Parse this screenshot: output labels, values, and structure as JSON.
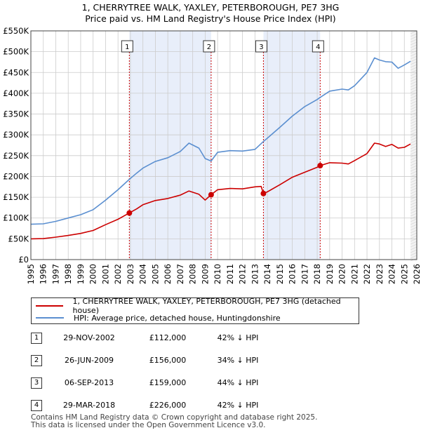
{
  "title_line1": "1, CHERRYTREE WALK, YAXLEY, PETERBOROUGH, PE7 3HG",
  "title_line2": "Price paid vs. HM Land Registry's House Price Index (HPI)",
  "colors": {
    "red": "#cc0000",
    "blue": "#5b8fd0",
    "shade": "#e8eefa",
    "grid": "#cccccc"
  },
  "chart_data": {
    "type": "line",
    "ylim": [
      0,
      550000
    ],
    "xlim": [
      1995,
      2026
    ],
    "y_ticks": [
      0,
      50000,
      100000,
      150000,
      200000,
      250000,
      300000,
      350000,
      400000,
      450000,
      500000,
      550000
    ],
    "y_tick_labels": [
      "£0",
      "£50K",
      "£100K",
      "£150K",
      "£200K",
      "£250K",
      "£300K",
      "£350K",
      "£400K",
      "£450K",
      "£500K",
      "£550K"
    ],
    "x_ticks": [
      1995,
      1996,
      1997,
      1998,
      1999,
      2000,
      2001,
      2002,
      2003,
      2004,
      2005,
      2006,
      2007,
      2008,
      2009,
      2010,
      2011,
      2012,
      2013,
      2014,
      2015,
      2016,
      2017,
      2018,
      2019,
      2020,
      2021,
      2022,
      2023,
      2024,
      2025,
      2026
    ],
    "series": [
      {
        "name": "1, CHERRYTREE WALK, YAXLEY, PETERBOROUGH, PE7 3HG (detached house)",
        "color": "#cc0000",
        "x": [
          1995,
          1996,
          1997,
          1998,
          1999,
          2000,
          2001,
          2002,
          2002.91,
          2003.5,
          2004,
          2005,
          2006,
          2007,
          2007.7,
          2008.5,
          2009,
          2009.48,
          2010,
          2011,
          2012,
          2013,
          2013.5,
          2013.68,
          2014,
          2015,
          2016,
          2017,
          2018,
          2018.24,
          2019,
          2020,
          2020.5,
          2021,
          2022,
          2022.6,
          2023,
          2023.5,
          2024,
          2024.5,
          2025,
          2025.5
        ],
        "y": [
          50000,
          50500,
          54000,
          58000,
          63000,
          70000,
          84000,
          97000,
          112000,
          122000,
          132000,
          142000,
          147000,
          155000,
          165000,
          157000,
          143000,
          156000,
          168000,
          171000,
          170000,
          175000,
          176000,
          159000,
          163000,
          180000,
          198000,
          210000,
          222000,
          226000,
          233000,
          232000,
          230000,
          238000,
          255000,
          280000,
          278000,
          272000,
          277000,
          268000,
          270000,
          278000
        ]
      },
      {
        "name": "HPI: Average price, detached house, Huntingdonshire",
        "color": "#5b8fd0",
        "x": [
          1995,
          1996,
          1997,
          1998,
          1999,
          2000,
          2001,
          2002,
          2002.91,
          2003.5,
          2004,
          2005,
          2006,
          2007,
          2007.7,
          2008.5,
          2009,
          2009.48,
          2010,
          2011,
          2012,
          2013,
          2013.68,
          2014,
          2015,
          2016,
          2017,
          2018,
          2018.24,
          2019,
          2020,
          2020.5,
          2021,
          2022,
          2022.6,
          2023,
          2023.5,
          2024,
          2024.5,
          2025,
          2025.5
        ],
        "y": [
          85000,
          86000,
          92000,
          100000,
          108000,
          120000,
          143000,
          168000,
          193000,
          208000,
          220000,
          236000,
          245000,
          260000,
          280000,
          268000,
          243000,
          237000,
          258000,
          262000,
          261000,
          265000,
          284000,
          292000,
          318000,
          345000,
          368000,
          385000,
          390000,
          405000,
          410000,
          408000,
          418000,
          450000,
          485000,
          480000,
          476000,
          475000,
          460000,
          468000,
          477000
        ]
      }
    ],
    "transactions": [
      {
        "id": "1",
        "x": 2002.91,
        "y": 112000
      },
      {
        "id": "2",
        "x": 2009.48,
        "y": 156000
      },
      {
        "id": "3",
        "x": 2013.68,
        "y": 159000
      },
      {
        "id": "4",
        "x": 2018.24,
        "y": 226000
      }
    ],
    "shaded_ranges": [
      [
        2002.91,
        2009.48
      ],
      [
        2013.68,
        2018.24
      ]
    ],
    "forecast_start": 2025.5
  },
  "legend": {
    "red_label": "1, CHERRYTREE WALK, YAXLEY, PETERBOROUGH, PE7 3HG (detached house)",
    "blue_label": "HPI: Average price, detached house, Huntingdonshire"
  },
  "sales": [
    {
      "num": "1",
      "date": "29-NOV-2002",
      "price": "£112,000",
      "pct": "42% ↓ HPI"
    },
    {
      "num": "2",
      "date": "26-JUN-2009",
      "price": "£156,000",
      "pct": "34% ↓ HPI"
    },
    {
      "num": "3",
      "date": "06-SEP-2013",
      "price": "£159,000",
      "pct": "44% ↓ HPI"
    },
    {
      "num": "4",
      "date": "29-MAR-2018",
      "price": "£226,000",
      "pct": "42% ↓ HPI"
    }
  ],
  "footer_line1": "Contains HM Land Registry data © Crown copyright and database right 2025.",
  "footer_line2": "This data is licensed under the Open Government Licence v3.0."
}
